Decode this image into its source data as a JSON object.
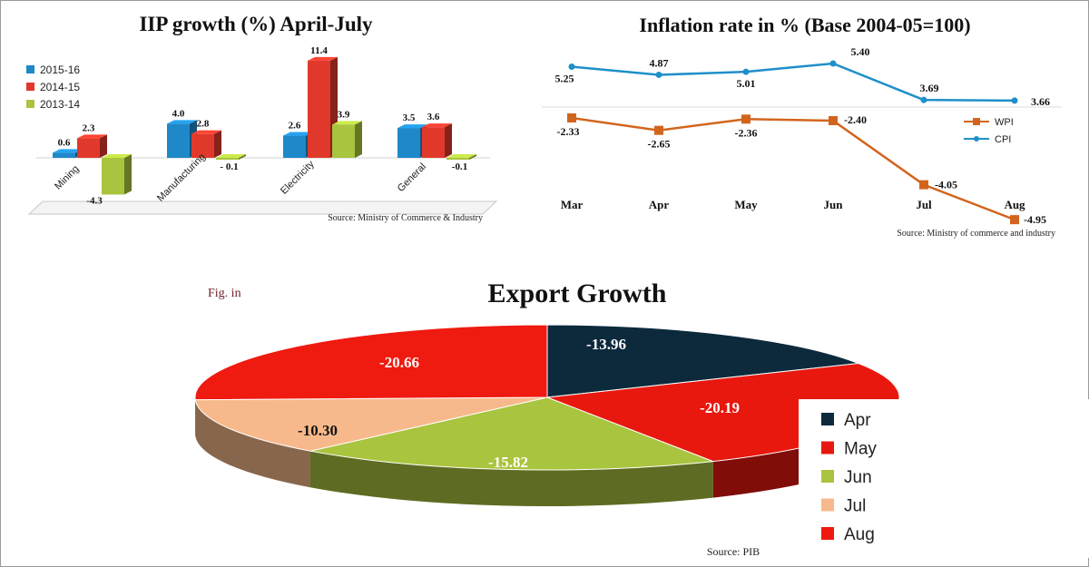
{
  "iip": {
    "title": "IIP growth (%) April-July",
    "source": "Source: Ministry of Commerce & Industry",
    "colors": {
      "2015-16": "#1f88c9",
      "2014-15": "#e0392b",
      "2013-14": "#a9c43e"
    }
  },
  "inflation": {
    "title": "Inflation rate in % (Base 2004-05=100)",
    "source": "Source: Ministry of commerce and industry",
    "colors": {
      "WPI": "#d2651d",
      "CPI": "#1f8fc9"
    }
  },
  "exports": {
    "title": "Export Growth",
    "fig_label": "Fig. in",
    "source": "Source: PIB",
    "colors": {
      "Apr": "#0d2a3d",
      "May": "#e8180f",
      "Jun": "#a9c43e",
      "Jul": "#f7b98b",
      "Aug": "#ef1a10"
    }
  },
  "chart_data": [
    {
      "type": "bar",
      "title": "IIP growth (%) April-July",
      "categories": [
        "Mining",
        "Manufacturing",
        "Electricity",
        "General"
      ],
      "series": [
        {
          "name": "2015-16",
          "values": [
            0.6,
            4.0,
            2.6,
            3.5
          ],
          "labels": [
            "0.6",
            "4.0",
            "2.6",
            "3.5"
          ]
        },
        {
          "name": "2014-15",
          "values": [
            2.3,
            2.8,
            11.4,
            3.6
          ],
          "labels": [
            "2.3",
            "2.8",
            "11.4",
            "3.6"
          ]
        },
        {
          "name": "2013-14",
          "values": [
            -4.3,
            -0.1,
            3.9,
            -0.1
          ],
          "labels": [
            "-4.3",
            "- 0.1",
            "3.9",
            "-0.1"
          ]
        }
      ],
      "ylim": [
        -5,
        12
      ],
      "legend": "top-left"
    },
    {
      "type": "line",
      "title": "Inflation rate in % (Base 2004-05=100)",
      "categories": [
        "Mar",
        "Apr",
        "May",
        "Jun",
        "Jul",
        "Aug"
      ],
      "series": [
        {
          "name": "CPI",
          "values": [
            5.25,
            4.87,
            5.01,
            5.4,
            3.69,
            3.66
          ],
          "labels": [
            "5.25",
            "4.87",
            "5.01",
            "5.40",
            "3.69",
            "3.66"
          ]
        },
        {
          "name": "WPI",
          "values": [
            -2.33,
            -2.65,
            -2.36,
            -2.4,
            -4.05,
            -4.95
          ],
          "labels": [
            "-2.33",
            "-2.65",
            "-2.36",
            "-2.40",
            "-4.05",
            "-4.95"
          ]
        }
      ],
      "legend": "right"
    },
    {
      "type": "pie",
      "title": "Export Growth",
      "categories": [
        "Apr",
        "May",
        "Jun",
        "Jul",
        "Aug"
      ],
      "values": [
        -13.96,
        -20.19,
        -15.82,
        -10.3,
        -20.66
      ],
      "labels": [
        "-13.96",
        "-20.19",
        "-15.82",
        "-10.30",
        "-20.66"
      ],
      "legend": "right"
    }
  ]
}
